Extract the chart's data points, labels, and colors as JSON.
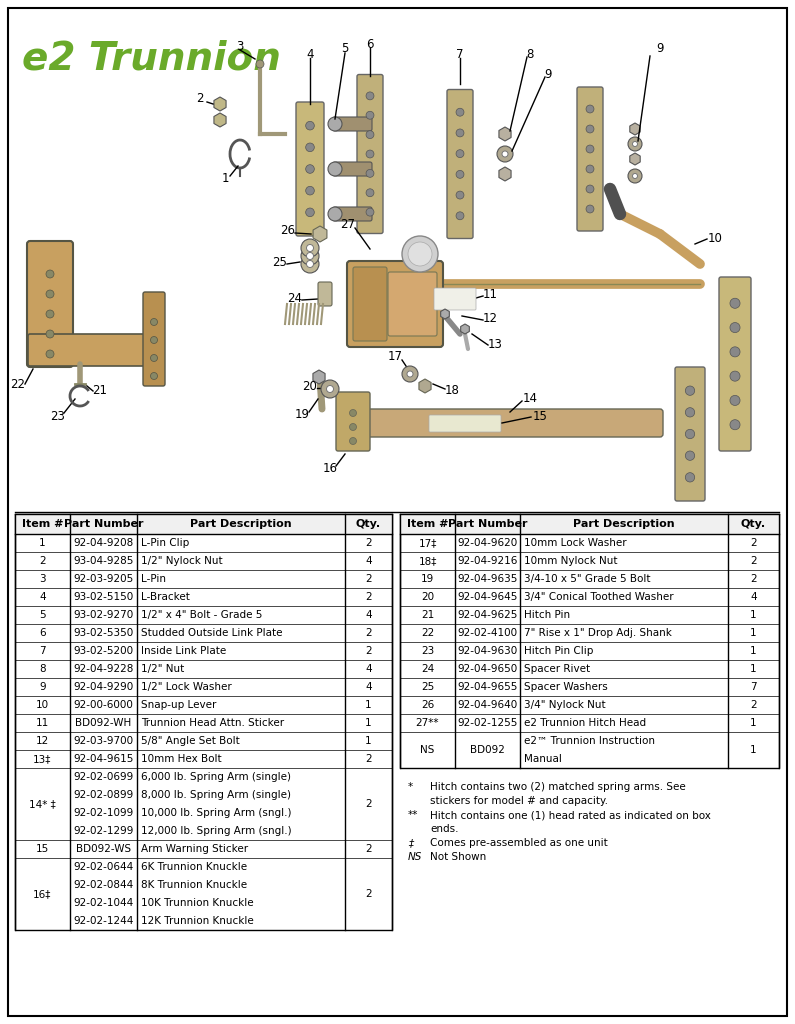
{
  "title": "e2 Trunnion",
  "title_color": "#6aaa2a",
  "title_fontsize": 28,
  "background_color": "#ffffff",
  "border_color": "#000000",
  "table_left": {
    "headers": [
      "Item #",
      "Part Number",
      "Part Description",
      "Qty."
    ],
    "rows": [
      [
        "1",
        "92-04-9208",
        "L-Pin Clip",
        "2"
      ],
      [
        "2",
        "93-04-9285",
        "1/2\" Nylock Nut",
        "4"
      ],
      [
        "3",
        "92-03-9205",
        "L-Pin",
        "2"
      ],
      [
        "4",
        "93-02-5150",
        "L-Bracket",
        "2"
      ],
      [
        "5",
        "93-02-9270",
        "1/2\" x 4\" Bolt - Grade 5",
        "4"
      ],
      [
        "6",
        "93-02-5350",
        "Studded Outside Link Plate",
        "2"
      ],
      [
        "7",
        "93-02-5200",
        "Inside Link Plate",
        "2"
      ],
      [
        "8",
        "92-04-9228",
        "1/2\" Nut",
        "4"
      ],
      [
        "9",
        "92-04-9290",
        "1/2\" Lock Washer",
        "4"
      ],
      [
        "10",
        "92-00-6000",
        "Snap-up Lever",
        "1"
      ],
      [
        "11",
        "BD092-WH",
        "Trunnion Head Attn. Sticker",
        "1"
      ],
      [
        "12",
        "92-03-9700",
        "5/8\" Angle Set Bolt",
        "1"
      ],
      [
        "13‡",
        "92-04-9615",
        "10mm Hex Bolt",
        "2"
      ],
      [
        "14* ‡",
        "92-02-0699\n92-02-0899\n92-02-1099\n92-02-1299",
        "6,000 lb. Spring Arm (single)\n8,000 lb. Spring Arm (single)\n10,000 lb. Spring Arm (sngl.)\n12,000 lb. Spring Arm (sngl.)",
        "2"
      ],
      [
        "15",
        "BD092-WS",
        "Arm Warning Sticker",
        "2"
      ],
      [
        "16‡",
        "92-02-0644\n92-02-0844\n92-02-1044\n92-02-1244",
        "6K Trunnion Knuckle\n8K Trunnion Knuckle\n10K Trunnion Knuckle\n12K Trunnion Knuckle",
        "2"
      ]
    ]
  },
  "table_right": {
    "headers": [
      "Item #",
      "Part Number",
      "Part Description",
      "Qty."
    ],
    "rows": [
      [
        "17‡",
        "92-04-9620",
        "10mm Lock Washer",
        "2"
      ],
      [
        "18‡",
        "92-04-9216",
        "10mm Nylock Nut",
        "2"
      ],
      [
        "19",
        "92-04-9635",
        "3/4-10 x 5\" Grade 5 Bolt",
        "2"
      ],
      [
        "20",
        "92-04-9645",
        "3/4\" Conical Toothed Washer",
        "4"
      ],
      [
        "21",
        "92-04-9625",
        "Hitch Pin",
        "1"
      ],
      [
        "22",
        "92-02-4100",
        "7\" Rise x 1\" Drop Adj. Shank",
        "1"
      ],
      [
        "23",
        "92-04-9630",
        "Hitch Pin Clip",
        "1"
      ],
      [
        "24",
        "92-04-9650",
        "Spacer Rivet",
        "1"
      ],
      [
        "25",
        "92-04-9655",
        "Spacer Washers",
        "7"
      ],
      [
        "26",
        "92-04-9640",
        "3/4\" Nylock Nut",
        "2"
      ],
      [
        "27**",
        "92-02-1255",
        "e2 Trunnion Hitch Head",
        "1"
      ],
      [
        "NS",
        "BD092",
        "e2™ Trunnion Instruction\nManual",
        "1"
      ]
    ]
  },
  "footnotes": [
    [
      "*",
      "Hitch contains two (2) matched spring arms. See stickers for model # and capacity."
    ],
    [
      "**",
      "Hitch contains one (1) head rated as indicated on box ends."
    ],
    [
      "‡",
      "Comes pre-assembled as one unit"
    ],
    [
      "NS",
      "Not Shown"
    ]
  ]
}
